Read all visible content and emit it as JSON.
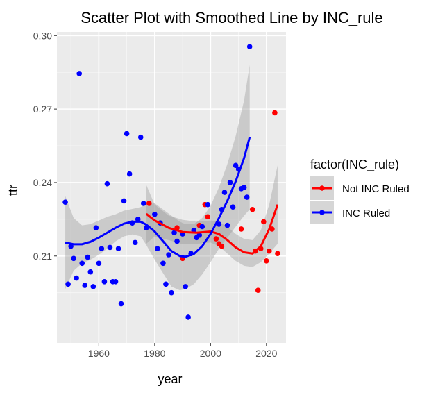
{
  "chart_data": {
    "type": "scatter",
    "title": "Scatter Plot with Smoothed Line by INC_rule",
    "xlabel": "year",
    "ylabel": "ttr",
    "xlim": [
      1945,
      2027
    ],
    "ylim": [
      0.1745,
      0.3015
    ],
    "x_ticks": [
      1960,
      1980,
      2000,
      2020
    ],
    "y_ticks": [
      0.21,
      0.24,
      0.27,
      0.3
    ],
    "y_tick_labels": [
      "0.21",
      "0.24",
      "0.27",
      "0.30"
    ],
    "grid": true,
    "legend_position": "right",
    "legend_title": "factor(INC_rule)",
    "series": [
      {
        "name": "Not INC Ruled",
        "color": "#ff0000",
        "points": [
          [
            1978,
            0.2315
          ],
          [
            1988,
            0.2215
          ],
          [
            1990,
            0.209
          ],
          [
            1996,
            0.2225
          ],
          [
            1998,
            0.231
          ],
          [
            1999,
            0.226
          ],
          [
            2002,
            0.217
          ],
          [
            2003,
            0.215
          ],
          [
            2004,
            0.214
          ],
          [
            2011,
            0.221
          ],
          [
            2015,
            0.229
          ],
          [
            2016,
            0.212
          ],
          [
            2017,
            0.196
          ],
          [
            2018,
            0.213
          ],
          [
            2019,
            0.224
          ],
          [
            2020,
            0.208
          ],
          [
            2021,
            0.212
          ],
          [
            2022,
            0.221
          ],
          [
            2023,
            0.2685
          ],
          [
            2024,
            0.211
          ]
        ],
        "smooth": [
          [
            1977,
            0.2272
          ],
          [
            1980,
            0.2245
          ],
          [
            1985,
            0.2215
          ],
          [
            1990,
            0.2198
          ],
          [
            1995,
            0.2195
          ],
          [
            2000,
            0.22
          ],
          [
            2003,
            0.219
          ],
          [
            2006,
            0.2165
          ],
          [
            2009,
            0.2135
          ],
          [
            2012,
            0.2115
          ],
          [
            2015,
            0.211
          ],
          [
            2018,
            0.214
          ],
          [
            2021,
            0.221
          ],
          [
            2024,
            0.231
          ]
        ],
        "ribbon": [
          [
            1977,
            0.215,
            0.239
          ],
          [
            1980,
            0.218,
            0.231
          ],
          [
            1985,
            0.2165,
            0.2265
          ],
          [
            1990,
            0.2148,
            0.2248
          ],
          [
            1995,
            0.215,
            0.224
          ],
          [
            2000,
            0.2155,
            0.2245
          ],
          [
            2003,
            0.214,
            0.224
          ],
          [
            2006,
            0.211,
            0.222
          ],
          [
            2009,
            0.208,
            0.219
          ],
          [
            2012,
            0.206,
            0.217
          ],
          [
            2015,
            0.2055,
            0.2165
          ],
          [
            2018,
            0.2075,
            0.2205
          ],
          [
            2021,
            0.211,
            0.231
          ],
          [
            2024,
            0.215,
            0.247
          ]
        ]
      },
      {
        "name": "INC Ruled",
        "color": "#0000ff",
        "points": [
          [
            1948,
            0.232
          ],
          [
            1949,
            0.1985
          ],
          [
            1950,
            0.214
          ],
          [
            1951,
            0.209
          ],
          [
            1952,
            0.201
          ],
          [
            1953,
            0.2845
          ],
          [
            1954,
            0.207
          ],
          [
            1955,
            0.198
          ],
          [
            1956,
            0.2095
          ],
          [
            1957,
            0.2035
          ],
          [
            1958,
            0.1975
          ],
          [
            1959,
            0.2215
          ],
          [
            1960,
            0.207
          ],
          [
            1961,
            0.213
          ],
          [
            1962,
            0.1995
          ],
          [
            1963,
            0.2395
          ],
          [
            1964,
            0.2135
          ],
          [
            1965,
            0.1995
          ],
          [
            1966,
            0.1995
          ],
          [
            1967,
            0.213
          ],
          [
            1968,
            0.1905
          ],
          [
            1969,
            0.2325
          ],
          [
            1970,
            0.26
          ],
          [
            1971,
            0.2435
          ],
          [
            1972,
            0.2235
          ],
          [
            1973,
            0.2155
          ],
          [
            1974,
            0.225
          ],
          [
            1975,
            0.2585
          ],
          [
            1976,
            0.2315
          ],
          [
            1977,
            0.2215
          ],
          [
            1980,
            0.227
          ],
          [
            1981,
            0.213
          ],
          [
            1982,
            0.2235
          ],
          [
            1983,
            0.207
          ],
          [
            1984,
            0.1985
          ],
          [
            1985,
            0.2105
          ],
          [
            1986,
            0.195
          ],
          [
            1987,
            0.2195
          ],
          [
            1988,
            0.216
          ],
          [
            1990,
            0.219
          ],
          [
            1991,
            0.1975
          ],
          [
            1992,
            0.185
          ],
          [
            1993,
            0.211
          ],
          [
            1994,
            0.2205
          ],
          [
            1995,
            0.2175
          ],
          [
            1996,
            0.2185
          ],
          [
            1997,
            0.222
          ],
          [
            1999,
            0.231
          ],
          [
            2003,
            0.223
          ],
          [
            2004,
            0.229
          ],
          [
            2005,
            0.236
          ],
          [
            2006,
            0.2225
          ],
          [
            2007,
            0.24
          ],
          [
            2008,
            0.23
          ],
          [
            2009,
            0.247
          ],
          [
            2010,
            0.2455
          ],
          [
            2011,
            0.2375
          ],
          [
            2012,
            0.238
          ],
          [
            2013,
            0.234
          ],
          [
            2014,
            0.2955
          ]
        ],
        "smooth": [
          [
            1948,
            0.2155
          ],
          [
            1951,
            0.2148
          ],
          [
            1954,
            0.2148
          ],
          [
            1957,
            0.2158
          ],
          [
            1960,
            0.2175
          ],
          [
            1963,
            0.2195
          ],
          [
            1966,
            0.2215
          ],
          [
            1969,
            0.2232
          ],
          [
            1972,
            0.224
          ],
          [
            1975,
            0.224
          ],
          [
            1977,
            0.2228
          ],
          [
            1980,
            0.22
          ],
          [
            1983,
            0.216
          ],
          [
            1986,
            0.212
          ],
          [
            1989,
            0.21
          ],
          [
            1991,
            0.2097
          ],
          [
            1994,
            0.2108
          ],
          [
            1997,
            0.214
          ],
          [
            2000,
            0.219
          ],
          [
            2003,
            0.2255
          ],
          [
            2006,
            0.2325
          ],
          [
            2009,
            0.2405
          ],
          [
            2012,
            0.25
          ],
          [
            2014,
            0.2585
          ]
        ],
        "ribbon": [
          [
            1948,
            0.1965,
            0.2345
          ],
          [
            1951,
            0.204,
            0.2255
          ],
          [
            1954,
            0.207,
            0.2225
          ],
          [
            1957,
            0.2085,
            0.223
          ],
          [
            1960,
            0.2105,
            0.2245
          ],
          [
            1963,
            0.213,
            0.226
          ],
          [
            1966,
            0.216,
            0.227
          ],
          [
            1969,
            0.218,
            0.2285
          ],
          [
            1972,
            0.2188,
            0.2292
          ],
          [
            1975,
            0.218,
            0.23
          ],
          [
            1977,
            0.2145,
            0.231
          ],
          [
            1980,
            0.2085,
            0.2315
          ],
          [
            1983,
            0.203,
            0.229
          ],
          [
            1986,
            0.1975,
            0.2265
          ],
          [
            1989,
            0.196,
            0.224
          ],
          [
            1991,
            0.1965,
            0.223
          ],
          [
            1994,
            0.1985,
            0.223
          ],
          [
            1997,
            0.2025,
            0.2255
          ],
          [
            2000,
            0.2075,
            0.2305
          ],
          [
            2003,
            0.213,
            0.238
          ],
          [
            2006,
            0.2175,
            0.2475
          ],
          [
            2009,
            0.222,
            0.259
          ],
          [
            2012,
            0.2265,
            0.2735
          ],
          [
            2014,
            0.229,
            0.288
          ]
        ]
      }
    ]
  }
}
